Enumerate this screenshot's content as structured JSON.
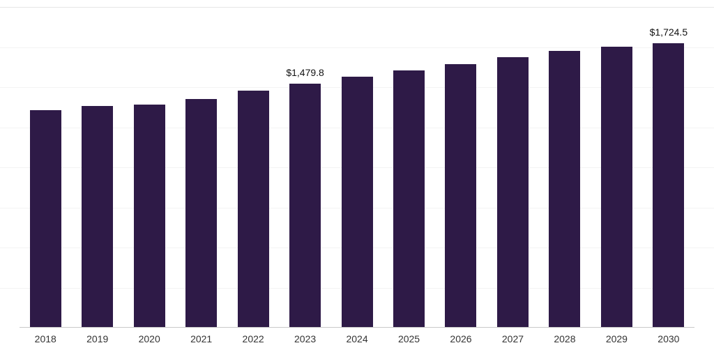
{
  "chart_data": {
    "type": "bar",
    "title": "",
    "xlabel": "",
    "ylabel": "",
    "categories": [
      "2018",
      "2019",
      "2020",
      "2021",
      "2022",
      "2023",
      "2024",
      "2025",
      "2026",
      "2027",
      "2028",
      "2029",
      "2030"
    ],
    "values": [
      1320,
      1345,
      1352,
      1385,
      1435,
      1479.8,
      1520,
      1560,
      1600,
      1640,
      1680,
      1706,
      1724.5
    ],
    "data_labels": {
      "2023": "$1,479.8",
      "2030": "$1,724.5"
    },
    "ylim": [
      0,
      1950
    ],
    "grid": true,
    "legend": false,
    "bar_color": "#2E1A47",
    "axis_line_color": "#c9c9c9",
    "gridline_color": "#f3f3f3",
    "label_text_color": "#111111",
    "tick_text_color": "#333333"
  }
}
